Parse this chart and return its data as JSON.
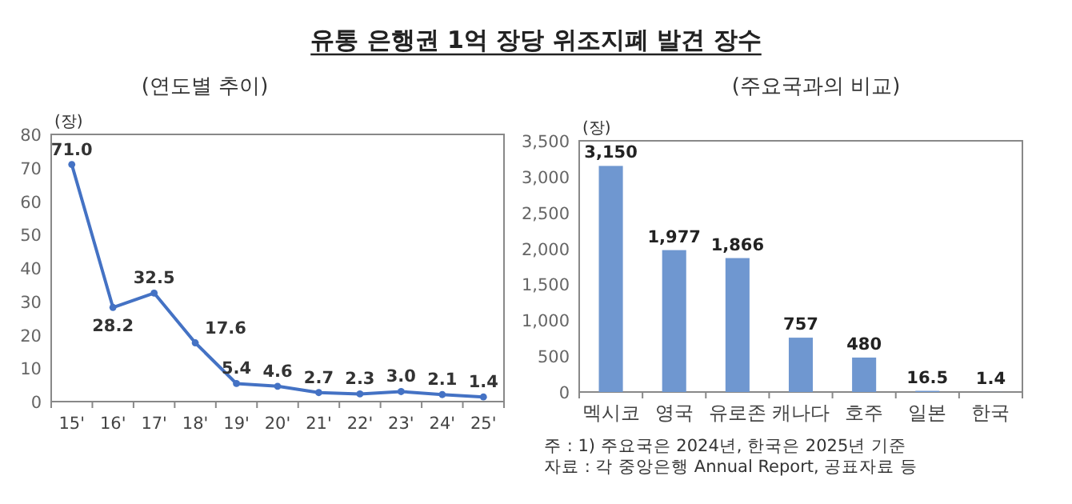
{
  "chart_data": [
    {
      "type": "line",
      "title": "유통 은행권 1억 장당 위조지폐 발견 장수",
      "subtitle": "(연도별 추이)",
      "ylabel": "(장)",
      "categories": [
        "15'",
        "16'",
        "17'",
        "18'",
        "19'",
        "20'",
        "21'",
        "22'",
        "23'",
        "24'",
        "25'"
      ],
      "values": [
        71.0,
        28.2,
        32.5,
        17.6,
        5.4,
        4.6,
        2.7,
        2.3,
        3.0,
        2.1,
        1.4
      ],
      "value_labels": [
        "71.0",
        "28.2",
        "32.5",
        "17.6",
        "5.4",
        "4.6",
        "2.7",
        "2.3",
        "3.0",
        "2.1",
        "1.4"
      ],
      "color": "#4472c4",
      "marker": "circle",
      "ylim": [
        0,
        80
      ],
      "yticks": [
        0,
        10,
        20,
        30,
        40,
        50,
        60,
        70,
        80
      ]
    },
    {
      "type": "bar",
      "subtitle": "(주요국과의 비교)",
      "ylabel": "(장)",
      "categories": [
        "멕시코",
        "영국",
        "유로존",
        "캐나다",
        "호주",
        "일본",
        "한국"
      ],
      "values": [
        3150,
        1977,
        1866,
        757,
        480,
        16.5,
        1.4
      ],
      "value_labels": [
        "3,150",
        "1,977",
        "1,866",
        "757",
        "480",
        "16.5",
        "1.4"
      ],
      "color": "#6f97d0",
      "ylim": [
        0,
        3500
      ],
      "yticks": [
        0,
        {
          "value": 500,
          "label": "500"
        },
        {
          "value": 1000,
          "label": "1,000"
        },
        {
          "value": 1500,
          "label": "1,500"
        },
        {
          "value": 2000,
          "label": "2,000"
        },
        {
          "value": 2500,
          "label": "2,500"
        },
        {
          "value": 3000,
          "label": "3,000"
        },
        {
          "value": 3500,
          "label": "3,500"
        }
      ],
      "annotations": [
        "주 : 1) 주요국은 2024년, 한국은 2025년 기준",
        "자료 : 각 중앙은행 Annual Report, 공표자료 등"
      ]
    }
  ]
}
